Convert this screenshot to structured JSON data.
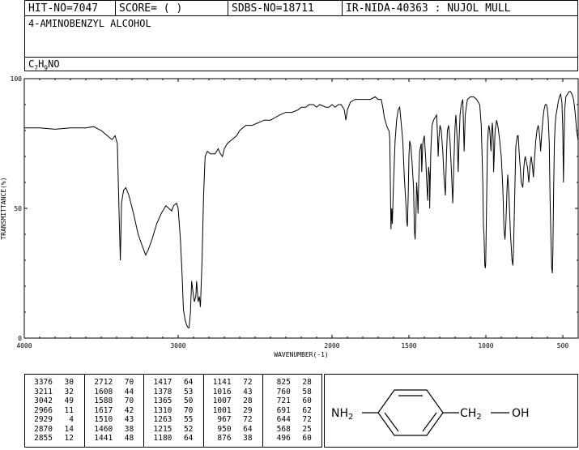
{
  "header": {
    "hit_no": "HIT-NO=7047",
    "score": "SCORE=  (   )",
    "sdbs_no": "SDBS-NO=18711",
    "ir_id": "IR-NIDA-40363 : NUJOL MULL"
  },
  "compound": {
    "name": "4-AMINOBENZYL ALCOHOL",
    "formula_parts": [
      "C",
      "7",
      "H",
      "9",
      "NO"
    ]
  },
  "chart_data": {
    "type": "line",
    "title": "",
    "xlabel": "WAVENUMBER(-1)",
    "ylabel": "TRANSMITTANCE(%)",
    "xlim": [
      4000,
      400
    ],
    "ylim": [
      0,
      100
    ],
    "x_reversed": true,
    "xticks": [
      4000,
      3000,
      2000,
      1500,
      1000,
      500
    ],
    "yticks": [
      0,
      50,
      100
    ],
    "grid": false,
    "legend": "none",
    "line_color": "#000000",
    "series": [
      {
        "points": [
          [
            4000,
            81
          ],
          [
            3900,
            81
          ],
          [
            3800,
            80.5
          ],
          [
            3700,
            81
          ],
          [
            3600,
            81
          ],
          [
            3550,
            81.5
          ],
          [
            3500,
            80
          ],
          [
            3460,
            78
          ],
          [
            3430,
            76.5
          ],
          [
            3410,
            78
          ],
          [
            3395,
            75
          ],
          [
            3385,
            50
          ],
          [
            3376,
            30
          ],
          [
            3368,
            52
          ],
          [
            3355,
            57
          ],
          [
            3340,
            58
          ],
          [
            3320,
            55
          ],
          [
            3290,
            48
          ],
          [
            3260,
            40
          ],
          [
            3230,
            35
          ],
          [
            3211,
            32
          ],
          [
            3195,
            34
          ],
          [
            3170,
            38
          ],
          [
            3140,
            44
          ],
          [
            3110,
            48
          ],
          [
            3080,
            51
          ],
          [
            3060,
            50
          ],
          [
            3042,
            49
          ],
          [
            3030,
            51
          ],
          [
            3010,
            52
          ],
          [
            3000,
            50
          ],
          [
            2985,
            38
          ],
          [
            2975,
            25
          ],
          [
            2966,
            11
          ],
          [
            2955,
            7
          ],
          [
            2945,
            5
          ],
          [
            2935,
            4
          ],
          [
            2929,
            4
          ],
          [
            2920,
            10
          ],
          [
            2912,
            22
          ],
          [
            2904,
            18
          ],
          [
            2895,
            14
          ],
          [
            2885,
            16
          ],
          [
            2880,
            22
          ],
          [
            2870,
            14
          ],
          [
            2862,
            16
          ],
          [
            2855,
            12
          ],
          [
            2845,
            30
          ],
          [
            2835,
            55
          ],
          [
            2825,
            70
          ],
          [
            2810,
            72
          ],
          [
            2790,
            71
          ],
          [
            2760,
            71
          ],
          [
            2740,
            73
          ],
          [
            2725,
            71
          ],
          [
            2712,
            70
          ],
          [
            2700,
            73
          ],
          [
            2680,
            75
          ],
          [
            2660,
            76
          ],
          [
            2640,
            77
          ],
          [
            2620,
            78
          ],
          [
            2600,
            80
          ],
          [
            2560,
            82
          ],
          [
            2520,
            82
          ],
          [
            2480,
            83
          ],
          [
            2440,
            84
          ],
          [
            2400,
            84
          ],
          [
            2370,
            85
          ],
          [
            2340,
            86
          ],
          [
            2300,
            87
          ],
          [
            2260,
            87
          ],
          [
            2220,
            88
          ],
          [
            2200,
            89
          ],
          [
            2170,
            89
          ],
          [
            2150,
            90
          ],
          [
            2120,
            90
          ],
          [
            2100,
            89
          ],
          [
            2080,
            90
          ],
          [
            2040,
            89
          ],
          [
            2020,
            89
          ],
          [
            2000,
            90
          ],
          [
            1980,
            89
          ],
          [
            1960,
            90
          ],
          [
            1940,
            90
          ],
          [
            1920,
            88
          ],
          [
            1910,
            84
          ],
          [
            1900,
            88
          ],
          [
            1880,
            91
          ],
          [
            1850,
            92
          ],
          [
            1820,
            92
          ],
          [
            1790,
            92
          ],
          [
            1770,
            92
          ],
          [
            1750,
            92
          ],
          [
            1720,
            93
          ],
          [
            1700,
            92
          ],
          [
            1680,
            92
          ],
          [
            1670,
            89
          ],
          [
            1660,
            85
          ],
          [
            1650,
            83
          ],
          [
            1640,
            81
          ],
          [
            1630,
            80
          ],
          [
            1625,
            77
          ],
          [
            1617,
            42
          ],
          [
            1612,
            50
          ],
          [
            1608,
            44
          ],
          [
            1600,
            60
          ],
          [
            1590,
            76
          ],
          [
            1580,
            84
          ],
          [
            1570,
            88
          ],
          [
            1560,
            89
          ],
          [
            1552,
            84
          ],
          [
            1540,
            76
          ],
          [
            1530,
            62
          ],
          [
            1520,
            52
          ],
          [
            1514,
            45
          ],
          [
            1510,
            43
          ],
          [
            1505,
            55
          ],
          [
            1500,
            70
          ],
          [
            1495,
            76
          ],
          [
            1488,
            74
          ],
          [
            1480,
            68
          ],
          [
            1470,
            58
          ],
          [
            1465,
            42
          ],
          [
            1460,
            38
          ],
          [
            1455,
            45
          ],
          [
            1450,
            60
          ],
          [
            1445,
            55
          ],
          [
            1441,
            48
          ],
          [
            1436,
            62
          ],
          [
            1430,
            72
          ],
          [
            1420,
            75
          ],
          [
            1417,
            64
          ],
          [
            1410,
            75
          ],
          [
            1400,
            78
          ],
          [
            1390,
            68
          ],
          [
            1384,
            60
          ],
          [
            1378,
            53
          ],
          [
            1372,
            66
          ],
          [
            1366,
            62
          ],
          [
            1365,
            50
          ],
          [
            1358,
            72
          ],
          [
            1350,
            82
          ],
          [
            1340,
            84
          ],
          [
            1330,
            85
          ],
          [
            1320,
            86
          ],
          [
            1314,
            78
          ],
          [
            1310,
            70
          ],
          [
            1305,
            77
          ],
          [
            1298,
            82
          ],
          [
            1290,
            80
          ],
          [
            1280,
            72
          ],
          [
            1272,
            62
          ],
          [
            1263,
            55
          ],
          [
            1255,
            72
          ],
          [
            1250,
            80
          ],
          [
            1242,
            82
          ],
          [
            1232,
            75
          ],
          [
            1222,
            62
          ],
          [
            1215,
            52
          ],
          [
            1208,
            68
          ],
          [
            1200,
            82
          ],
          [
            1195,
            86
          ],
          [
            1186,
            76
          ],
          [
            1180,
            64
          ],
          [
            1174,
            76
          ],
          [
            1168,
            86
          ],
          [
            1160,
            90
          ],
          [
            1150,
            92
          ],
          [
            1141,
            72
          ],
          [
            1134,
            86
          ],
          [
            1120,
            92
          ],
          [
            1100,
            93
          ],
          [
            1080,
            93
          ],
          [
            1060,
            92
          ],
          [
            1040,
            90
          ],
          [
            1030,
            82
          ],
          [
            1020,
            60
          ],
          [
            1016,
            43
          ],
          [
            1012,
            40
          ],
          [
            1007,
            28
          ],
          [
            1003,
            27
          ],
          [
            1001,
            29
          ],
          [
            996,
            50
          ],
          [
            990,
            74
          ],
          [
            985,
            80
          ],
          [
            980,
            82
          ],
          [
            975,
            80
          ],
          [
            970,
            75
          ],
          [
            967,
            72
          ],
          [
            962,
            80
          ],
          [
            958,
            83
          ],
          [
            952,
            76
          ],
          [
            950,
            64
          ],
          [
            946,
            70
          ],
          [
            940,
            80
          ],
          [
            930,
            84
          ],
          [
            920,
            81
          ],
          [
            910,
            76
          ],
          [
            900,
            70
          ],
          [
            890,
            58
          ],
          [
            882,
            42
          ],
          [
            876,
            38
          ],
          [
            870,
            44
          ],
          [
            862,
            58
          ],
          [
            858,
            63
          ],
          [
            850,
            55
          ],
          [
            840,
            40
          ],
          [
            830,
            30
          ],
          [
            825,
            28
          ],
          [
            820,
            35
          ],
          [
            812,
            56
          ],
          [
            805,
            74
          ],
          [
            795,
            78
          ],
          [
            790,
            78
          ],
          [
            782,
            70
          ],
          [
            776,
            65
          ],
          [
            770,
            60
          ],
          [
            760,
            58
          ],
          [
            755,
            64
          ],
          [
            750,
            68
          ],
          [
            744,
            70
          ],
          [
            738,
            68
          ],
          [
            730,
            66
          ],
          [
            721,
            60
          ],
          [
            714,
            66
          ],
          [
            705,
            70
          ],
          [
            697,
            66
          ],
          [
            691,
            62
          ],
          [
            685,
            68
          ],
          [
            676,
            76
          ],
          [
            668,
            80
          ],
          [
            660,
            82
          ],
          [
            654,
            80
          ],
          [
            648,
            76
          ],
          [
            644,
            72
          ],
          [
            638,
            78
          ],
          [
            630,
            84
          ],
          [
            622,
            88
          ],
          [
            614,
            90
          ],
          [
            606,
            90
          ],
          [
            600,
            88
          ],
          [
            594,
            84
          ],
          [
            588,
            75
          ],
          [
            583,
            55
          ],
          [
            576,
            35
          ],
          [
            572,
            27
          ],
          [
            568,
            25
          ],
          [
            565,
            32
          ],
          [
            560,
            55
          ],
          [
            555,
            75
          ],
          [
            550,
            82
          ],
          [
            544,
            86
          ],
          [
            538,
            88
          ],
          [
            530,
            91
          ],
          [
            522,
            93
          ],
          [
            514,
            94
          ],
          [
            506,
            91
          ],
          [
            500,
            80
          ],
          [
            496,
            60
          ],
          [
            492,
            75
          ],
          [
            488,
            88
          ],
          [
            480,
            93
          ],
          [
            470,
            94
          ],
          [
            460,
            95
          ],
          [
            450,
            95
          ],
          [
            440,
            94
          ],
          [
            430,
            92
          ],
          [
            420,
            87
          ],
          [
            410,
            80
          ],
          [
            400,
            76
          ]
        ]
      }
    ]
  },
  "peak_table": {
    "columns": [
      [
        [
          "3376",
          "30"
        ],
        [
          "3211",
          "32"
        ],
        [
          "3042",
          "49"
        ],
        [
          "2966",
          "11"
        ],
        [
          "2929",
          "4"
        ],
        [
          "2870",
          "14"
        ],
        [
          "2855",
          "12"
        ]
      ],
      [
        [
          "2712",
          "70"
        ],
        [
          "1608",
          "44"
        ],
        [
          "1588",
          "70"
        ],
        [
          "1617",
          "42"
        ],
        [
          "1510",
          "43"
        ],
        [
          "1460",
          "38"
        ],
        [
          "1441",
          "48"
        ]
      ],
      [
        [
          "1417",
          "64"
        ],
        [
          "1378",
          "53"
        ],
        [
          "1365",
          "50"
        ],
        [
          "1310",
          "70"
        ],
        [
          "1263",
          "55"
        ],
        [
          "1215",
          "52"
        ],
        [
          "1180",
          "64"
        ]
      ],
      [
        [
          "1141",
          "72"
        ],
        [
          "1016",
          "43"
        ],
        [
          "1007",
          "28"
        ],
        [
          "1001",
          "29"
        ],
        [
          "967",
          "72"
        ],
        [
          "950",
          "64"
        ],
        [
          "876",
          "38"
        ]
      ],
      [
        [
          "825",
          "28"
        ],
        [
          "760",
          "58"
        ],
        [
          "721",
          "60"
        ],
        [
          "691",
          "62"
        ],
        [
          "644",
          "72"
        ],
        [
          "568",
          "25"
        ],
        [
          "496",
          "60"
        ]
      ]
    ]
  },
  "structure": {
    "left_group": "NH",
    "left_sub": "2",
    "right_group_a": "CH",
    "right_sub": "2",
    "right_group_b": "OH"
  }
}
